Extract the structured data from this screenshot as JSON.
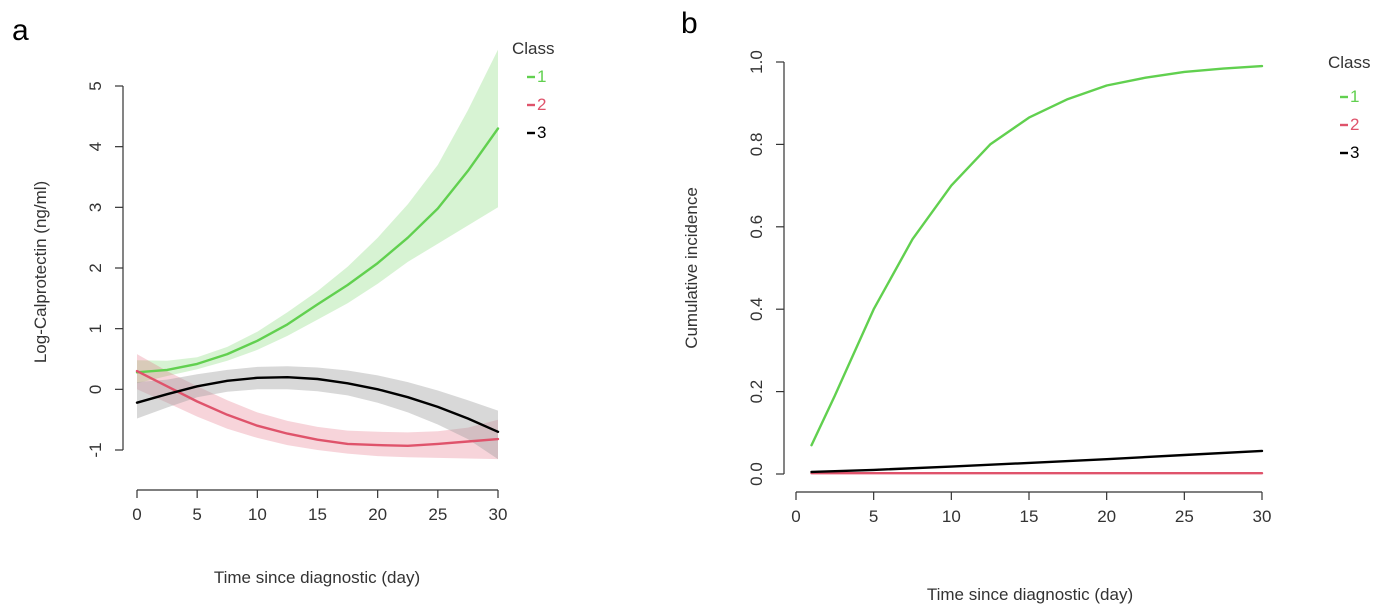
{
  "panels": [
    {
      "letter": "a",
      "xlabel": "Time since diagnostic (day)",
      "ylabel": "Log-Calprotectin (ng/ml)",
      "legend_title": "Class"
    },
    {
      "letter": "b",
      "xlabel": "Time since diagnostic (day)",
      "ylabel": "Cumulative incidence",
      "legend_title": "Class"
    }
  ],
  "chart_data": [
    {
      "type": "line",
      "title": "",
      "xlabel": "Time since diagnostic (day)",
      "ylabel": "Log-Calprotectin (ng/ml)",
      "xlim": [
        0,
        30
      ],
      "ylim": [
        -1,
        5
      ],
      "x_ticks": [
        0,
        5,
        10,
        15,
        20,
        25,
        30
      ],
      "y_ticks": [
        -1,
        0,
        1,
        2,
        3,
        4,
        5
      ],
      "x_tick_labels": [
        "0",
        "5",
        "10",
        "15",
        "20",
        "25",
        "30"
      ],
      "y_tick_labels": [
        "-1",
        "0",
        "1",
        "2",
        "3",
        "4",
        "5"
      ],
      "legend": {
        "title": "Class",
        "position": "top-right"
      },
      "grid": false,
      "series": [
        {
          "name": "1",
          "color": "#61d04f",
          "band_color": "#61d04f",
          "x": [
            0,
            2.5,
            5,
            7.5,
            10,
            12.5,
            15,
            17.5,
            20,
            22.5,
            25,
            27.5,
            30
          ],
          "y": [
            0.28,
            0.32,
            0.42,
            0.58,
            0.8,
            1.07,
            1.4,
            1.72,
            2.08,
            2.5,
            2.98,
            3.6,
            4.3
          ],
          "lower": [
            0.1,
            0.22,
            0.33,
            0.47,
            0.65,
            0.88,
            1.15,
            1.42,
            1.74,
            2.1,
            2.4,
            2.7,
            3.0
          ],
          "upper": [
            0.48,
            0.47,
            0.53,
            0.7,
            0.95,
            1.27,
            1.62,
            2.02,
            2.5,
            3.05,
            3.7,
            4.6,
            5.6
          ]
        },
        {
          "name": "2",
          "color": "#df536b",
          "band_color": "#df536b",
          "x": [
            0,
            2.5,
            5,
            7.5,
            10,
            12.5,
            15,
            17.5,
            20,
            22.5,
            25,
            27.5,
            30
          ],
          "y": [
            0.3,
            0.05,
            -0.2,
            -0.42,
            -0.6,
            -0.73,
            -0.83,
            -0.9,
            -0.92,
            -0.93,
            -0.9,
            -0.86,
            -0.82
          ],
          "lower": [
            0.0,
            -0.22,
            -0.45,
            -0.65,
            -0.8,
            -0.92,
            -1.0,
            -1.06,
            -1.1,
            -1.12,
            -1.13,
            -1.14,
            -1.15
          ],
          "upper": [
            0.58,
            0.3,
            0.05,
            -0.18,
            -0.38,
            -0.52,
            -0.62,
            -0.68,
            -0.7,
            -0.71,
            -0.69,
            -0.63,
            -0.5
          ]
        },
        {
          "name": "3",
          "color": "#000000",
          "band_color": "#9e9e9e",
          "x": [
            0,
            2.5,
            5,
            7.5,
            10,
            12.5,
            15,
            17.5,
            20,
            22.5,
            25,
            27.5,
            30
          ],
          "y": [
            -0.22,
            -0.08,
            0.05,
            0.14,
            0.19,
            0.2,
            0.17,
            0.1,
            0.0,
            -0.13,
            -0.29,
            -0.48,
            -0.7
          ],
          "lower": [
            -0.48,
            -0.3,
            -0.13,
            -0.04,
            0.0,
            0.0,
            -0.03,
            -0.1,
            -0.22,
            -0.38,
            -0.58,
            -0.82,
            -1.15
          ],
          "upper": [
            0.12,
            0.16,
            0.25,
            0.32,
            0.37,
            0.38,
            0.36,
            0.31,
            0.23,
            0.12,
            -0.02,
            -0.18,
            -0.35
          ]
        }
      ]
    },
    {
      "type": "line",
      "title": "",
      "xlabel": "Time since diagnostic (day)",
      "ylabel": "Cumulative incidence",
      "xlim": [
        1,
        30
      ],
      "ylim": [
        0,
        1
      ],
      "x_ticks": [
        0,
        5,
        10,
        15,
        20,
        25,
        30
      ],
      "y_ticks": [
        0,
        0.2,
        0.4,
        0.6,
        0.8,
        1
      ],
      "x_tick_labels": [
        "0",
        "5",
        "10",
        "15",
        "20",
        "25",
        "30"
      ],
      "y_tick_labels": [
        "0.0",
        "0.2",
        "0.4",
        "0.6",
        "0.8",
        "1.0"
      ],
      "legend": {
        "title": "Class",
        "position": "top-right, outside"
      },
      "grid": false,
      "series": [
        {
          "name": "1",
          "color": "#61d04f",
          "x": [
            1,
            2.5,
            5,
            7.5,
            10,
            12.5,
            15,
            17.5,
            20,
            22.5,
            25,
            27.5,
            30
          ],
          "y": [
            0.07,
            0.19,
            0.4,
            0.57,
            0.7,
            0.8,
            0.865,
            0.91,
            0.943,
            0.962,
            0.976,
            0.984,
            0.99
          ]
        },
        {
          "name": "2",
          "color": "#df536b",
          "x": [
            1,
            30
          ],
          "y": [
            0.002,
            0.002
          ]
        },
        {
          "name": "3",
          "color": "#000000",
          "x": [
            1,
            5,
            10,
            15,
            20,
            25,
            30
          ],
          "y": [
            0.005,
            0.01,
            0.018,
            0.027,
            0.036,
            0.046,
            0.056
          ]
        }
      ]
    }
  ]
}
